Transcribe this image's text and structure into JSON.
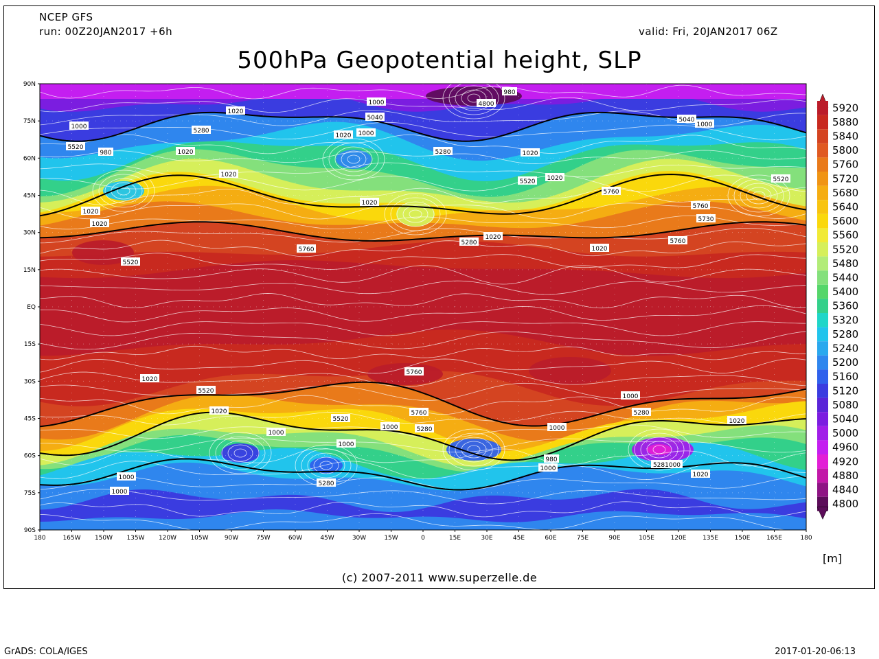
{
  "header": {
    "model": "NCEP GFS",
    "run": "run: 00Z20JAN2017 +6h",
    "valid": "valid: Fri, 20JAN2017 06Z",
    "title": "500hPa Geopotential height, SLP"
  },
  "unit_label": "[m]",
  "credit": "(c) 2007-2011 www.superzelle.de",
  "footer": {
    "left": "GrADS: COLA/IGES",
    "right": "2017-01-20-06:13"
  },
  "axes": {
    "lat_labels": [
      "90N",
      "75N",
      "60N",
      "45N",
      "30N",
      "15N",
      "EQ",
      "15S",
      "30S",
      "45S",
      "60S",
      "75S",
      "90S"
    ],
    "lon_labels": [
      "180",
      "165W",
      "150W",
      "135W",
      "120W",
      "105W",
      "90W",
      "75W",
      "60W",
      "45W",
      "30W",
      "15W",
      "0",
      "15E",
      "30E",
      "45E",
      "60E",
      "75E",
      "90E",
      "105E",
      "120E",
      "135E",
      "150E",
      "165E",
      "180"
    ]
  },
  "colorbar": {
    "levels": [
      {
        "value": "5920",
        "color": "#bb1c2a"
      },
      {
        "value": "5880",
        "color": "#c8291f"
      },
      {
        "value": "5840",
        "color": "#d44421"
      },
      {
        "value": "5800",
        "color": "#e05a22"
      },
      {
        "value": "5760",
        "color": "#e97a1a"
      },
      {
        "value": "5720",
        "color": "#f09414"
      },
      {
        "value": "5680",
        "color": "#f5ad12"
      },
      {
        "value": "5640",
        "color": "#f8c40f"
      },
      {
        "value": "5600",
        "color": "#fad80c"
      },
      {
        "value": "5560",
        "color": "#f1ea35"
      },
      {
        "value": "5520",
        "color": "#d6ef5a"
      },
      {
        "value": "5480",
        "color": "#b2ec78"
      },
      {
        "value": "5440",
        "color": "#84e07c"
      },
      {
        "value": "5400",
        "color": "#55d66a"
      },
      {
        "value": "5360",
        "color": "#33d08a"
      },
      {
        "value": "5320",
        "color": "#1fd6c8"
      },
      {
        "value": "5280",
        "color": "#21c4ec"
      },
      {
        "value": "5240",
        "color": "#2aa8ee"
      },
      {
        "value": "5200",
        "color": "#2f86ee"
      },
      {
        "value": "5160",
        "color": "#2f61ec"
      },
      {
        "value": "5120",
        "color": "#3a3ce0"
      },
      {
        "value": "5080",
        "color": "#5a25d8"
      },
      {
        "value": "5040",
        "color": "#7b1de0"
      },
      {
        "value": "5000",
        "color": "#a11ee8"
      },
      {
        "value": "4960",
        "color": "#c41ef0"
      },
      {
        "value": "4920",
        "color": "#e21ed6"
      },
      {
        "value": "4880",
        "color": "#c218a8"
      },
      {
        "value": "4840",
        "color": "#8e1484"
      },
      {
        "value": "4800",
        "color": "#5c0c5a"
      }
    ]
  },
  "contour_labels": [
    {
      "text": "980"
    },
    {
      "text": "4800"
    },
    {
      "text": "1000"
    },
    {
      "text": "5040"
    },
    {
      "text": "1020"
    },
    {
      "text": "5280"
    },
    {
      "text": "1020"
    },
    {
      "text": "1000"
    },
    {
      "text": "5040"
    },
    {
      "text": "1000"
    },
    {
      "text": "1000"
    },
    {
      "text": "5520"
    },
    {
      "text": "980"
    },
    {
      "text": "1020"
    },
    {
      "text": "5280"
    },
    {
      "text": "1020"
    },
    {
      "text": "1020"
    },
    {
      "text": "5520"
    },
    {
      "text": "1020"
    },
    {
      "text": "5520"
    },
    {
      "text": "5760"
    },
    {
      "text": "1020"
    },
    {
      "text": "5760"
    },
    {
      "text": "1020"
    },
    {
      "text": "5730"
    },
    {
      "text": "1020"
    },
    {
      "text": "5760"
    },
    {
      "text": "5280"
    },
    {
      "text": "1020"
    },
    {
      "text": "1020"
    },
    {
      "text": "5760"
    },
    {
      "text": "5520"
    },
    {
      "text": "1020"
    },
    {
      "text": "5760"
    },
    {
      "text": "5520"
    },
    {
      "text": "1000"
    },
    {
      "text": "1020"
    },
    {
      "text": "5760"
    },
    {
      "text": "5520"
    },
    {
      "text": "1000"
    },
    {
      "text": "1000"
    },
    {
      "text": "5280"
    },
    {
      "text": "5280"
    },
    {
      "text": "1000"
    },
    {
      "text": "1020"
    },
    {
      "text": "1000"
    },
    {
      "text": "980"
    },
    {
      "text": "1000"
    },
    {
      "text": "5281000"
    },
    {
      "text": "1000"
    },
    {
      "text": "1020"
    },
    {
      "text": "1000"
    },
    {
      "text": "5280"
    }
  ]
}
